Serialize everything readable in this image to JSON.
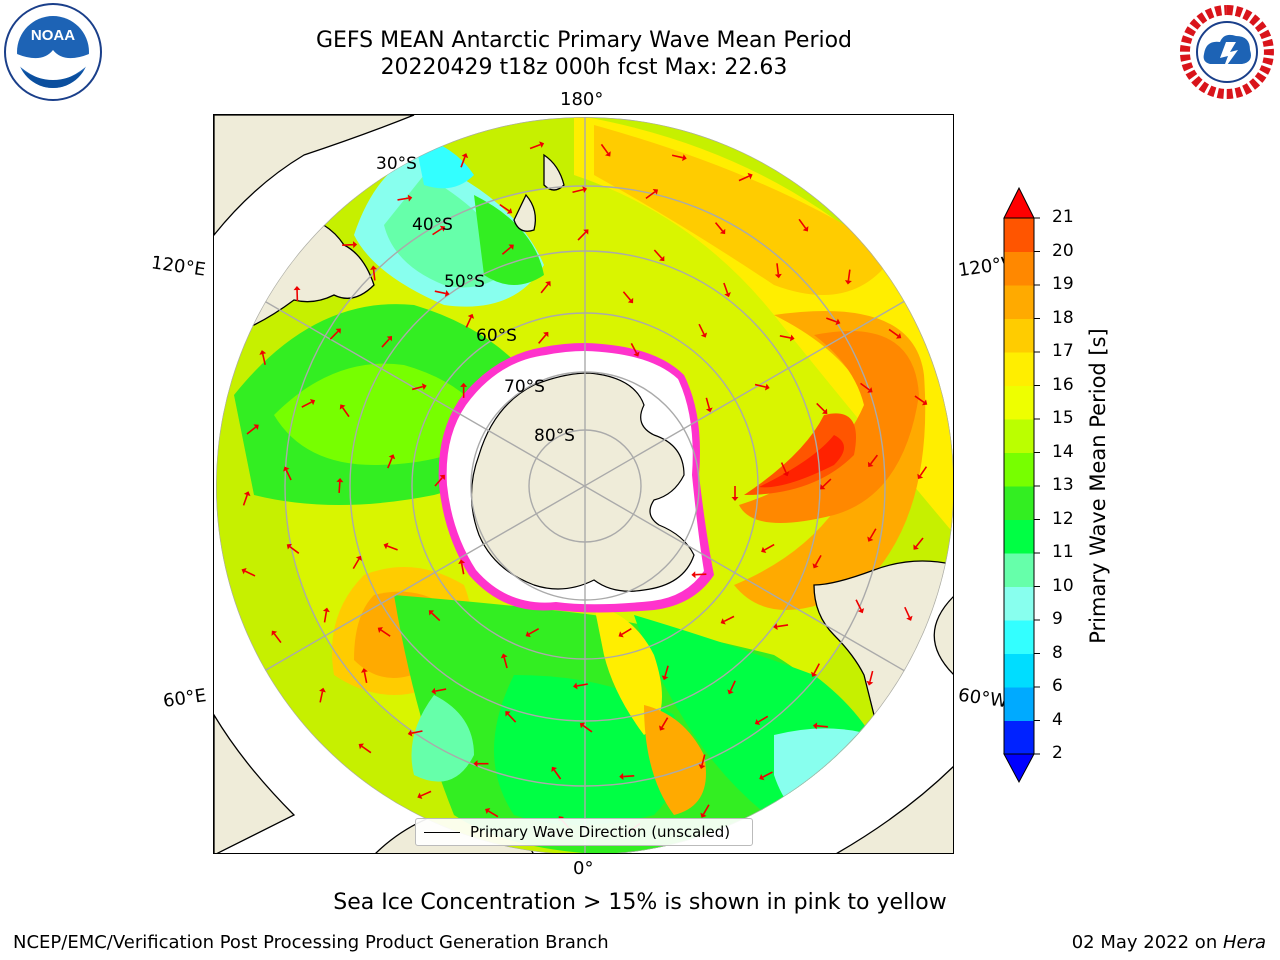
{
  "title": {
    "line1": "GEFS MEAN Antarctic Primary Wave Mean Period",
    "line2": "20220429 t18z 000h fcst   Max: 22.63"
  },
  "logos": {
    "left_text": "NOAA",
    "left_ring": "NATIONAL OCEANIC AND ATMOSPHERIC ADMINISTRATION · U.S. DEPARTMENT OF COMMERCE",
    "right_ring": "NATIONAL WEATHER SERVICE"
  },
  "map": {
    "lon_labels": {
      "top": "180°",
      "bottom": "0°",
      "left_upper": "120°E",
      "left_lower": "60°E",
      "right_upper": "120°W",
      "right_lower": "60°W"
    },
    "lat_labels": [
      "30°S",
      "40°S",
      "50°S",
      "60°S",
      "70°S",
      "80°S"
    ],
    "legend": "Primary Wave Direction (unscaled)",
    "colors": {
      "land": "#efecd9",
      "ice": "#ffffff",
      "ice_edge": "#ff33cc",
      "arrow": "#ee0000",
      "grid": "#aaaaaa"
    }
  },
  "colorbar": {
    "label": "Primary Wave Mean Period [s]",
    "ticks": [
      "2",
      "4",
      "6",
      "8",
      "9",
      "10",
      "11",
      "12",
      "13",
      "14",
      "15",
      "16",
      "17",
      "18",
      "19",
      "20",
      "21"
    ],
    "colors": [
      "#0022ff",
      "#00aaff",
      "#00ddff",
      "#33ffff",
      "#88ffee",
      "#66ffaa",
      "#00ff44",
      "#33ee22",
      "#77ff00",
      "#bbff00",
      "#eeff00",
      "#ffee00",
      "#ffcc00",
      "#ffaa00",
      "#ff8800",
      "#ff5500",
      "#ff2200"
    ],
    "under_color": "#0000ff",
    "over_color": "#ff0000"
  },
  "note": "Sea Ice Concentration > 15% is shown in pink to yellow",
  "footer": {
    "left": "NCEP/EMC/Verification Post Processing Product Generation Branch",
    "right_date": "02 May 2022 on ",
    "right_host": "Hera"
  }
}
